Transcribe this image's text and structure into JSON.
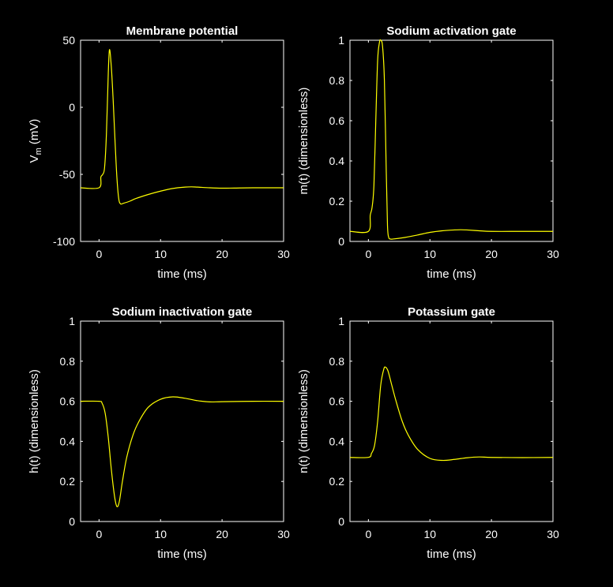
{
  "figure": {
    "background": "#000000",
    "axis_color": "#ffffff",
    "line_color": "#ffff00"
  },
  "chart_data": [
    {
      "type": "line",
      "title": "Membrane potential",
      "xlabel": "time (ms)",
      "ylabel": "V",
      "ylabel_sub": "m",
      "ylabel_tail": " (mV)",
      "xlim": [
        -3,
        30
      ],
      "ylim": [
        -100,
        50
      ],
      "xticks": [
        0,
        10,
        20,
        30
      ],
      "yticks": [
        -100,
        -50,
        0,
        50
      ],
      "grid": false,
      "series": [
        {
          "x": [
            -3,
            0,
            0.3,
            0.6,
            0.9,
            1.2,
            1.5,
            1.7,
            2.0,
            2.3,
            2.6,
            2.9,
            3.2,
            3.5,
            4,
            5,
            6,
            8,
            10,
            12,
            14,
            15,
            16,
            18,
            20,
            22,
            25,
            30
          ],
          "y": [
            -60,
            -60,
            -52,
            -50,
            -45,
            -20,
            25,
            43,
            30,
            5,
            -25,
            -52,
            -68,
            -72,
            -71.5,
            -70,
            -68,
            -65,
            -62.5,
            -60.5,
            -59.5,
            -59.3,
            -59.5,
            -60,
            -60.3,
            -60.2,
            -60,
            -60
          ]
        }
      ]
    },
    {
      "type": "line",
      "title": "Sodium activation gate",
      "xlabel": "time (ms)",
      "ylabel": "m(t) (dimensionless)",
      "xlim": [
        -3,
        30
      ],
      "ylim": [
        0,
        1
      ],
      "xticks": [
        0,
        10,
        20,
        30
      ],
      "yticks": [
        0,
        0.2,
        0.4,
        0.6,
        0.8,
        1
      ],
      "grid": false,
      "series": [
        {
          "x": [
            -3,
            0,
            0.3,
            0.6,
            0.9,
            1.2,
            1.5,
            1.8,
            2.0,
            2.3,
            2.6,
            2.9,
            3.1,
            3.3,
            3.6,
            4,
            6,
            8,
            10,
            12,
            14,
            15,
            16,
            18,
            20,
            25,
            30
          ],
          "y": [
            0.05,
            0.05,
            0.13,
            0.17,
            0.28,
            0.6,
            0.9,
            0.99,
            1.0,
            0.97,
            0.8,
            0.35,
            0.08,
            0.02,
            0.012,
            0.012,
            0.02,
            0.032,
            0.045,
            0.053,
            0.057,
            0.058,
            0.057,
            0.053,
            0.05,
            0.05,
            0.05
          ]
        }
      ]
    },
    {
      "type": "line",
      "title": "Sodium inactivation gate",
      "xlabel": "time (ms)",
      "ylabel": "h(t) (dimensionless)",
      "xlim": [
        -3,
        30
      ],
      "ylim": [
        0,
        1
      ],
      "xticks": [
        0,
        10,
        20,
        30
      ],
      "yticks": [
        0,
        0.2,
        0.4,
        0.6,
        0.8,
        1
      ],
      "grid": false,
      "series": [
        {
          "x": [
            -3,
            0,
            0.5,
            1,
            1.5,
            2,
            2.5,
            2.9,
            3.3,
            3.8,
            4.5,
            5.5,
            6.5,
            8,
            10,
            12,
            14,
            16,
            18,
            20,
            25,
            30
          ],
          "y": [
            0.6,
            0.6,
            0.59,
            0.54,
            0.42,
            0.26,
            0.13,
            0.075,
            0.1,
            0.2,
            0.32,
            0.43,
            0.5,
            0.57,
            0.61,
            0.622,
            0.615,
            0.603,
            0.597,
            0.598,
            0.6,
            0.6
          ]
        }
      ]
    },
    {
      "type": "line",
      "title": "Potassium gate",
      "xlabel": "time (ms)",
      "ylabel": "n(t) (dimensionless)",
      "xlim": [
        -3,
        30
      ],
      "ylim": [
        0,
        1
      ],
      "xticks": [
        0,
        10,
        20,
        30
      ],
      "yticks": [
        0,
        0.2,
        0.4,
        0.6,
        0.8,
        1
      ],
      "grid": false,
      "series": [
        {
          "x": [
            -3,
            0,
            0.5,
            1,
            1.5,
            2,
            2.5,
            2.8,
            3.2,
            3.8,
            4.5,
            5.5,
            6.5,
            8,
            10,
            12,
            14,
            16,
            18,
            20,
            25,
            30
          ],
          "y": [
            0.32,
            0.32,
            0.34,
            0.38,
            0.5,
            0.68,
            0.76,
            0.77,
            0.75,
            0.68,
            0.6,
            0.5,
            0.43,
            0.36,
            0.315,
            0.305,
            0.31,
            0.318,
            0.322,
            0.32,
            0.319,
            0.32
          ]
        }
      ]
    }
  ]
}
